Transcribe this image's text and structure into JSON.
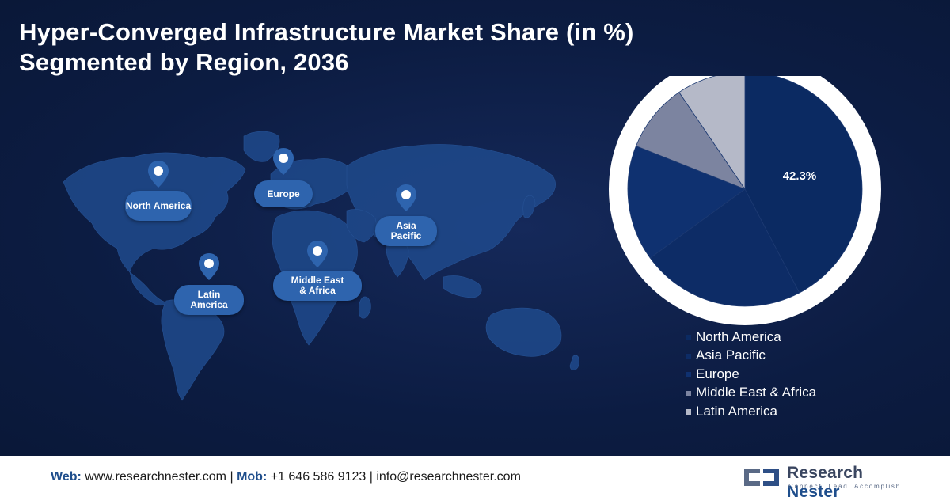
{
  "title_lines": [
    "Hyper-Converged Infrastructure Market Share (in %)",
    "Segmented by Region, 2036"
  ],
  "map_labels": {
    "north_america": "North America",
    "europe": "Europe",
    "asia_pacific": "Asia Pacific",
    "latin_america": "Latin America",
    "middle_east_africa": "Middle East & Africa"
  },
  "chart_data": {
    "type": "pie",
    "title": "Hyper-Converged Infrastructure Market Share (in %) Segmented by Region, 2036",
    "categories": [
      "North America",
      "Asia Pacific",
      "Europe",
      "Middle East & Africa",
      "Latin America"
    ],
    "values": [
      42.3,
      22.7,
      16.0,
      9.5,
      9.5
    ],
    "value_labels": [
      "42.3%",
      "",
      "",
      "",
      ""
    ],
    "colors": [
      "#0b2a62",
      "#0d2c66",
      "#0f3170",
      "#7c84a0",
      "#b5b9c8"
    ],
    "start_angle": "12 o'clock",
    "direction": "clockwise",
    "legend_position": "bottom-right"
  },
  "footer": {
    "web_label": "Web:",
    "web": "www.researchnester.com",
    "sep1": "|",
    "mob_label": "Mob:",
    "mob": "+1 646 586 9123",
    "sep2": "|",
    "email": "info@researchnester.com"
  },
  "logo": {
    "name_part1": "Research",
    "name_part2": "Nester",
    "tagline": "Connect. Lead. Accomplish"
  }
}
